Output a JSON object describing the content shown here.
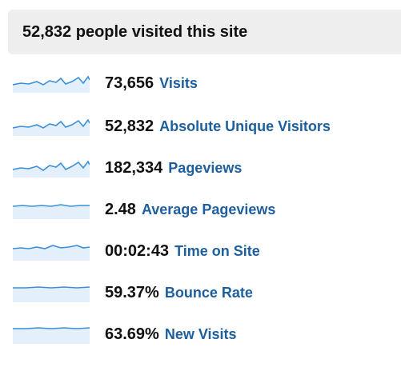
{
  "header": {
    "title": "52,832 people visited this site"
  },
  "metrics": [
    {
      "value": "73,656",
      "label": "Visits"
    },
    {
      "value": "52,832",
      "label": "Absolute Unique Visitors"
    },
    {
      "value": "182,334",
      "label": "Pageviews"
    },
    {
      "value": "2.48",
      "label": "Average Pageviews"
    },
    {
      "value": "00:02:43",
      "label": "Time on Site"
    },
    {
      "value": "59.37%",
      "label": "Bounce Rate"
    },
    {
      "value": "63.69%",
      "label": "New Visits"
    }
  ]
}
